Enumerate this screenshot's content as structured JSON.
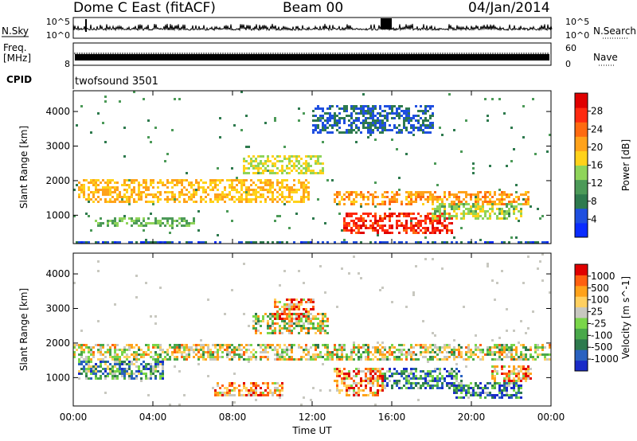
{
  "header": {
    "station": "Dome C East (fitACF)",
    "beam": "Beam 00",
    "date": "04/Jan/2014"
  },
  "panels": {
    "nsky": {
      "label": "N.Sky",
      "ticks": [
        "10^5",
        "10^0"
      ]
    },
    "nsearch": {
      "label": "N.Search",
      "ticks": [
        "10^5",
        "10^0"
      ]
    },
    "freq": {
      "label_top": "Freq.",
      "label_bottom": "[MHz]",
      "ticks": [
        "8"
      ]
    },
    "nave": {
      "label": "Nave",
      "ticks": [
        "60",
        "0"
      ]
    },
    "cpid": {
      "label": "CPID",
      "value": "twofsound 3501"
    }
  },
  "chart_data": [
    {
      "type": "heatmap",
      "name": "power-panel",
      "xlabel": "Time UT",
      "ylabel": "Slant Range [km]",
      "xticks": [
        "00:00",
        "04:00",
        "08:00",
        "12:00",
        "16:00",
        "20:00",
        "00:00"
      ],
      "xlim_hours": [
        0,
        24
      ],
      "yticks": [
        1000,
        2000,
        3000,
        4000
      ],
      "ylim": [
        180,
        4600
      ],
      "colorbar": {
        "label": "Power [dB]",
        "ticks": [
          4,
          8,
          12,
          16,
          20,
          24,
          28
        ],
        "range": [
          0,
          30
        ],
        "colors": [
          "#0a2cff",
          "#1f4fe0",
          "#2e7a4e",
          "#4c9a58",
          "#8fd45a",
          "#ffd21a",
          "#ffa21a",
          "#ff6a10",
          "#ff2a10",
          "#e00000"
        ]
      },
      "bands": [
        {
          "t0": 0.2,
          "t1": 11.8,
          "r0": 1400,
          "r1": 2100,
          "level": 18
        },
        {
          "t0": 13.0,
          "t1": 22.8,
          "r0": 1300,
          "r1": 1700,
          "level": 20
        },
        {
          "t0": 8.5,
          "t1": 12.5,
          "r0": 2200,
          "r1": 2800,
          "level": 15
        },
        {
          "t0": 1.0,
          "t1": 6.0,
          "r0": 700,
          "r1": 1000,
          "level": 12
        },
        {
          "t0": 13.5,
          "t1": 19.0,
          "r0": 500,
          "r1": 1100,
          "level": 26
        },
        {
          "t0": 18.0,
          "t1": 22.5,
          "r0": 900,
          "r1": 1400,
          "level": 14
        },
        {
          "t0": 12.0,
          "t1": 18.0,
          "r0": 3400,
          "r1": 4200,
          "level": 6
        },
        {
          "t0": 0.0,
          "t1": 24.0,
          "r0": 180,
          "r1": 300,
          "level": 5
        }
      ]
    },
    {
      "type": "heatmap",
      "name": "velocity-panel",
      "xlabel": "Time UT",
      "ylabel": "Slant Range [km]",
      "xticks": [
        "00:00",
        "04:00",
        "08:00",
        "12:00",
        "16:00",
        "20:00",
        "00:00"
      ],
      "xlim_hours": [
        0,
        24
      ],
      "yticks": [
        1000,
        2000,
        3000,
        4000
      ],
      "ylim": [
        180,
        4600
      ],
      "colorbar": {
        "label": "Velocity [m s^-1]",
        "ticks": [
          "1000",
          "500",
          "100",
          "25",
          "-25",
          "-100",
          "-500",
          "-1000"
        ],
        "colors": [
          "#1a2cc8",
          "#2a62c0",
          "#2e7a4e",
          "#49a84a",
          "#7ad64a",
          "#c8c8c0",
          "#ffd060",
          "#ffa21a",
          "#ff6010",
          "#e00000"
        ]
      },
      "bands": [
        {
          "t0": 0.0,
          "t1": 24.0,
          "r0": 1500,
          "r1": 2000,
          "level": 5
        },
        {
          "t0": 9.0,
          "t1": 12.8,
          "r0": 2300,
          "r1": 2900,
          "level": 5
        },
        {
          "t0": 10.0,
          "t1": 12.0,
          "r0": 2700,
          "r1": 3300,
          "level": 7
        },
        {
          "t0": 0.2,
          "t1": 4.5,
          "r0": 1000,
          "r1": 1500,
          "level": 3
        },
        {
          "t0": 7.0,
          "t1": 10.5,
          "r0": 500,
          "r1": 900,
          "level": 7
        },
        {
          "t0": 13.0,
          "t1": 15.5,
          "r0": 500,
          "r1": 1300,
          "level": 7
        },
        {
          "t0": 15.5,
          "t1": 19.5,
          "r0": 700,
          "r1": 1300,
          "level": 2
        },
        {
          "t0": 19.0,
          "t1": 22.5,
          "r0": 400,
          "r1": 900,
          "level": 2
        },
        {
          "t0": 21.0,
          "t1": 23.0,
          "r0": 900,
          "r1": 1400,
          "level": 7
        }
      ]
    }
  ]
}
